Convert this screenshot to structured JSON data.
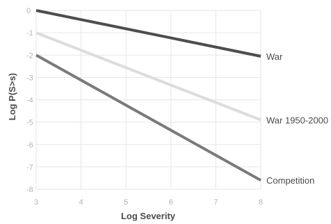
{
  "chart_data": {
    "type": "line",
    "xlabel": "Log Severity",
    "ylabel": "Log P(S>s)",
    "xlim": [
      3,
      8
    ],
    "ylim": [
      -8,
      0
    ],
    "x_ticks": [
      "3",
      "4",
      "5",
      "6",
      "7",
      "8"
    ],
    "y_ticks": [
      "0",
      "-1",
      "-2",
      "-3",
      "-4",
      "-5",
      "-6",
      "-7",
      "-8"
    ],
    "grid": true,
    "legend": "none",
    "series": [
      {
        "name": "War",
        "color": "#4d4d4d",
        "x": [
          3,
          8
        ],
        "y": [
          0,
          -2.05
        ]
      },
      {
        "name": "War 1950-2000",
        "color": "#dcdcdc",
        "x": [
          3,
          8
        ],
        "y": [
          -1,
          -4.9
        ]
      },
      {
        "name": "Competition",
        "color": "#7a7a7a",
        "x": [
          3,
          8
        ],
        "y": [
          -2,
          -7.6
        ]
      }
    ]
  }
}
